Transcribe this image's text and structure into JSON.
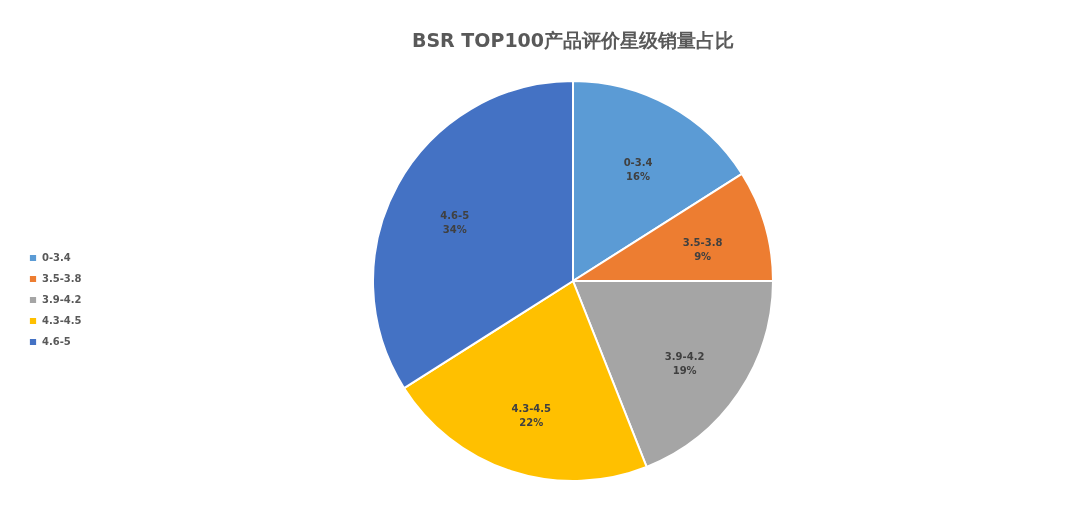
{
  "chart_data": {
    "type": "pie",
    "title": "BSR TOP100产品评价星级销量占比",
    "categories": [
      "0-3.4",
      "3.5-3.8",
      "3.9-4.2",
      "4.3-4.5",
      "4.6-5"
    ],
    "values": [
      16,
      9,
      19,
      22,
      34
    ],
    "value_labels": [
      "16%",
      "9%",
      "19%",
      "22%",
      "34%"
    ],
    "colors": [
      "#5b9bd5",
      "#ed7d31",
      "#a5a5a5",
      "#ffc000",
      "#4472c4"
    ],
    "legend": "left"
  }
}
